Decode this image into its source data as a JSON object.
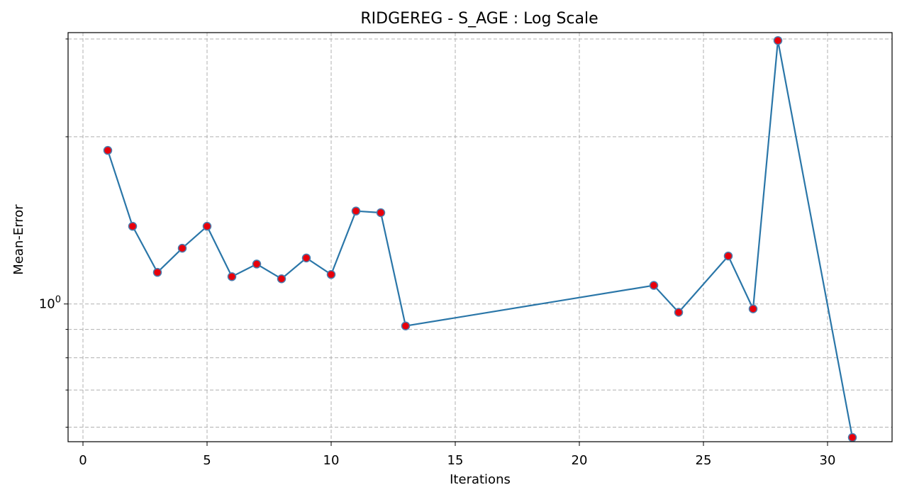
{
  "chart_data": {
    "type": "line",
    "title": "RIDGEREG - S_AGE : Log Scale",
    "xlabel": "Iterations",
    "ylabel": "Mean-Error",
    "xlim": [
      -0.6,
      32.6
    ],
    "ylim": [
      0.565,
      3.08
    ],
    "yscale": "log",
    "grid": true,
    "grid_style": "dashed",
    "x_ticks": [
      0,
      5,
      10,
      15,
      20,
      25,
      30
    ],
    "x_tick_labels": [
      "0",
      "5",
      "10",
      "15",
      "20",
      "25",
      "30"
    ],
    "y_major_ticks": [
      1.0
    ],
    "y_tick_label_base": "10",
    "y_tick_label_exp": "0",
    "y_minor_ticks": [
      0.6,
      0.7,
      0.8,
      0.9,
      2.0,
      3.0
    ],
    "series": [
      {
        "x": [
          1,
          2,
          3,
          4,
          5,
          6,
          7,
          8,
          9,
          10,
          11,
          12,
          13,
          23,
          24,
          26,
          27,
          28,
          31
        ],
        "values": [
          1.89,
          1.38,
          1.14,
          1.26,
          1.38,
          1.12,
          1.18,
          1.11,
          1.21,
          1.13,
          1.47,
          1.46,
          0.913,
          1.08,
          0.966,
          1.22,
          0.98,
          2.98,
          0.575
        ],
        "line_color": "#2a76a8",
        "marker_face": "#e8000b",
        "marker_edge": "#4a7fb0"
      }
    ]
  }
}
